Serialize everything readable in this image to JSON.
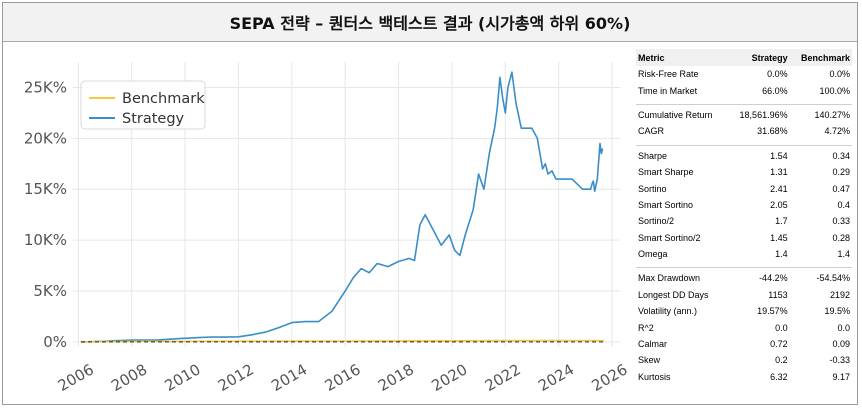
{
  "title": "SEPA 전략 – 퀀터스 백테스트 결과 (시가총액 하위 60%)",
  "chart_data": {
    "type": "line",
    "title": "",
    "xlabel": "",
    "ylabel": "",
    "x_ticks": [
      "2006",
      "2008",
      "2010",
      "2012",
      "2014",
      "2016",
      "2018",
      "2020",
      "2022",
      "2024",
      "2026"
    ],
    "y_ticks": [
      "0%",
      "5K%",
      "10K%",
      "15K%",
      "20K%",
      "25K%"
    ],
    "xlim": [
      2005.8,
      2026.3
    ],
    "ylim": [
      -500,
      27500
    ],
    "grid": true,
    "legend_position": "top-left",
    "series": [
      {
        "name": "Benchmark",
        "color": "#f5c842",
        "points": [
          [
            2006.1,
            0
          ],
          [
            2008,
            40
          ],
          [
            2010,
            60
          ],
          [
            2012,
            70
          ],
          [
            2014,
            80
          ],
          [
            2016,
            90
          ],
          [
            2018,
            100
          ],
          [
            2020,
            105
          ],
          [
            2022,
            125
          ],
          [
            2024,
            132
          ],
          [
            2025.7,
            140
          ]
        ]
      },
      {
        "name": "Strategy",
        "color": "#3a8ec8",
        "points": [
          [
            2006.1,
            0
          ],
          [
            2007,
            60
          ],
          [
            2007.5,
            130
          ],
          [
            2008,
            180
          ],
          [
            2009,
            200
          ],
          [
            2009.8,
            330
          ],
          [
            2010.5,
            420
          ],
          [
            2011,
            480
          ],
          [
            2011.5,
            470
          ],
          [
            2012,
            500
          ],
          [
            2012.5,
            700
          ],
          [
            2013,
            950
          ],
          [
            2013.5,
            1400
          ],
          [
            2014,
            1900
          ],
          [
            2014.5,
            2000
          ],
          [
            2015,
            2000
          ],
          [
            2015.5,
            3000
          ],
          [
            2016,
            5000
          ],
          [
            2016.3,
            6300
          ],
          [
            2016.6,
            7200
          ],
          [
            2016.9,
            6800
          ],
          [
            2017.2,
            7700
          ],
          [
            2017.6,
            7400
          ],
          [
            2018,
            7900
          ],
          [
            2018.4,
            8200
          ],
          [
            2018.6,
            8000
          ],
          [
            2018.8,
            11500
          ],
          [
            2019,
            12500
          ],
          [
            2019.3,
            11000
          ],
          [
            2019.6,
            9500
          ],
          [
            2019.9,
            10500
          ],
          [
            2020.1,
            9000
          ],
          [
            2020.3,
            8500
          ],
          [
            2020.5,
            10500
          ],
          [
            2020.8,
            13000
          ],
          [
            2021,
            16500
          ],
          [
            2021.2,
            15000
          ],
          [
            2021.4,
            18500
          ],
          [
            2021.6,
            21000
          ],
          [
            2021.7,
            23000
          ],
          [
            2021.8,
            26000
          ],
          [
            2021.9,
            24000
          ],
          [
            2022.0,
            22500
          ],
          [
            2022.1,
            25000
          ],
          [
            2022.25,
            26500
          ],
          [
            2022.4,
            23500
          ],
          [
            2022.6,
            21000
          ],
          [
            2023,
            21000
          ],
          [
            2023.2,
            20000
          ],
          [
            2023.4,
            17000
          ],
          [
            2023.5,
            17500
          ],
          [
            2023.6,
            16500
          ],
          [
            2023.75,
            16800
          ],
          [
            2023.9,
            16000
          ],
          [
            2024.5,
            16000
          ],
          [
            2024.9,
            15000
          ],
          [
            2025.2,
            15000
          ],
          [
            2025.25,
            15500
          ],
          [
            2025.3,
            15800
          ],
          [
            2025.35,
            14800
          ],
          [
            2025.45,
            16000
          ],
          [
            2025.55,
            19500
          ],
          [
            2025.6,
            18500
          ],
          [
            2025.65,
            19000
          ]
        ]
      }
    ]
  },
  "metrics": {
    "headers": [
      "Metric",
      "Strategy",
      "Benchmark"
    ],
    "groups": [
      [
        [
          "Risk-Free Rate",
          "0.0%",
          "0.0%"
        ],
        [
          "Time in Market",
          "66.0%",
          "100.0%"
        ]
      ],
      [
        [
          "Cumulative Return",
          "18,561.96%",
          "140.27%"
        ],
        [
          "CAGR",
          "31.68%",
          "4.72%"
        ]
      ],
      [
        [
          "Sharpe",
          "1.54",
          "0.34"
        ],
        [
          "Smart Sharpe",
          "1.31",
          "0.29"
        ],
        [
          "Sortino",
          "2.41",
          "0.47"
        ],
        [
          "Smart Sortino",
          "2.05",
          "0.4"
        ],
        [
          "Sortino/2",
          "1.7",
          "0.33"
        ],
        [
          "Smart Sortino/2",
          "1.45",
          "0.28"
        ],
        [
          "Omega",
          "1.4",
          "1.4"
        ]
      ],
      [
        [
          "Max Drawdown",
          "-44.2%",
          "-54.54%"
        ],
        [
          "Longest DD Days",
          "1153",
          "2192"
        ],
        [
          "Volatility (ann.)",
          "19.57%",
          "19.5%"
        ],
        [
          "R^2",
          "0.0",
          "0.0"
        ],
        [
          "Calmar",
          "0.72",
          "0.09"
        ],
        [
          "Skew",
          "0.2",
          "-0.33"
        ],
        [
          "Kurtosis",
          "6.32",
          "9.17"
        ]
      ]
    ]
  }
}
